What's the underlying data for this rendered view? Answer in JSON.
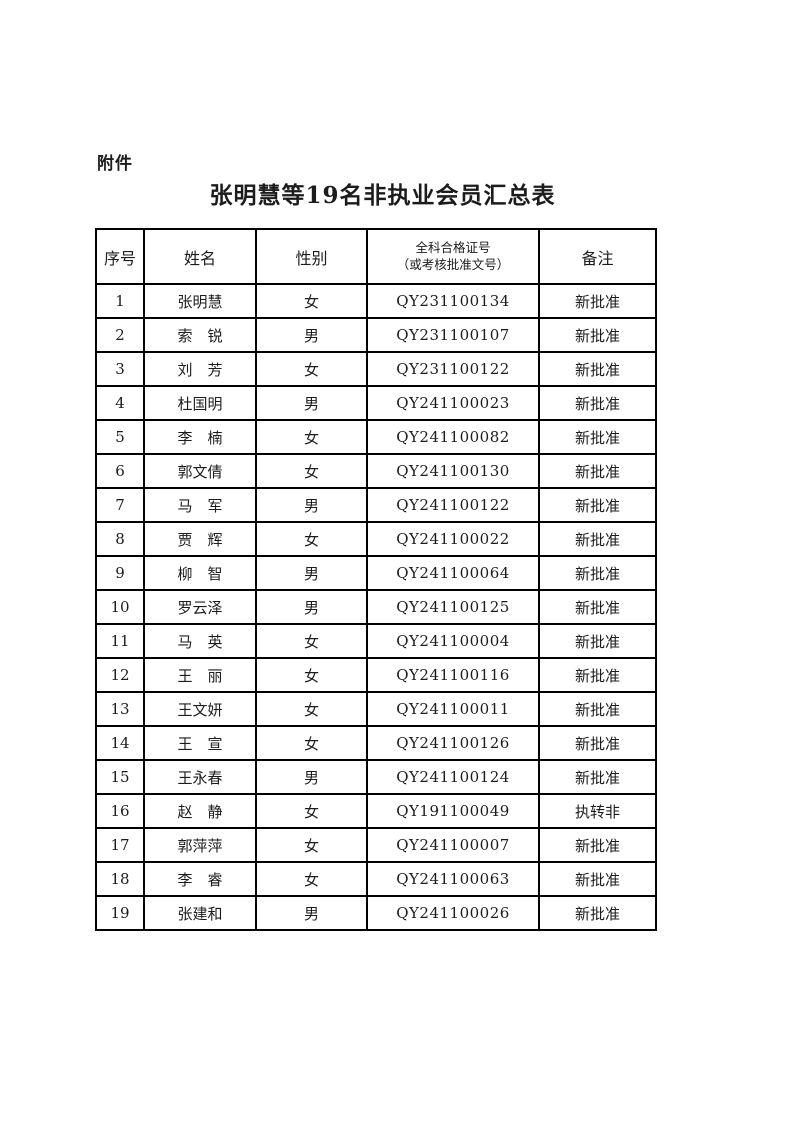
{
  "page": {
    "attachment_label": "附件",
    "title": "张明慧等19名非执业会员汇总表"
  },
  "table": {
    "headers": {
      "no": "序号",
      "name": "姓名",
      "gender": "性别",
      "cert_line1": "全科合格证号",
      "cert_line2": "（或考核批准文号）",
      "remark": "备注"
    },
    "rows": [
      {
        "no": "1",
        "name": "张明慧",
        "gender": "女",
        "cert": "QY231100134",
        "remark": "新批准"
      },
      {
        "no": "2",
        "name": "索　锐",
        "gender": "男",
        "cert": "QY231100107",
        "remark": "新批准"
      },
      {
        "no": "3",
        "name": "刘　芳",
        "gender": "女",
        "cert": "QY231100122",
        "remark": "新批准"
      },
      {
        "no": "4",
        "name": "杜国明",
        "gender": "男",
        "cert": "QY241100023",
        "remark": "新批准"
      },
      {
        "no": "5",
        "name": "李　楠",
        "gender": "女",
        "cert": "QY241100082",
        "remark": "新批准"
      },
      {
        "no": "6",
        "name": "郭文倩",
        "gender": "女",
        "cert": "QY241100130",
        "remark": "新批准"
      },
      {
        "no": "7",
        "name": "马　军",
        "gender": "男",
        "cert": "QY241100122",
        "remark": "新批准"
      },
      {
        "no": "8",
        "name": "贾　辉",
        "gender": "女",
        "cert": "QY241100022",
        "remark": "新批准"
      },
      {
        "no": "9",
        "name": "柳　智",
        "gender": "男",
        "cert": "QY241100064",
        "remark": "新批准"
      },
      {
        "no": "10",
        "name": "罗云泽",
        "gender": "男",
        "cert": "QY241100125",
        "remark": "新批准"
      },
      {
        "no": "11",
        "name": "马　英",
        "gender": "女",
        "cert": "QY241100004",
        "remark": "新批准"
      },
      {
        "no": "12",
        "name": "王　丽",
        "gender": "女",
        "cert": "QY241100116",
        "remark": "新批准"
      },
      {
        "no": "13",
        "name": "王文妍",
        "gender": "女",
        "cert": "QY241100011",
        "remark": "新批准"
      },
      {
        "no": "14",
        "name": "王　宣",
        "gender": "女",
        "cert": "QY241100126",
        "remark": "新批准"
      },
      {
        "no": "15",
        "name": "王永春",
        "gender": "男",
        "cert": "QY241100124",
        "remark": "新批准"
      },
      {
        "no": "16",
        "name": "赵　静",
        "gender": "女",
        "cert": "QY191100049",
        "remark": "执转非"
      },
      {
        "no": "17",
        "name": "郭萍萍",
        "gender": "女",
        "cert": "QY241100007",
        "remark": "新批准"
      },
      {
        "no": "18",
        "name": "李　睿",
        "gender": "女",
        "cert": "QY241100063",
        "remark": "新批准"
      },
      {
        "no": "19",
        "name": "张建和",
        "gender": "男",
        "cert": "QY241100026",
        "remark": "新批准"
      }
    ]
  }
}
